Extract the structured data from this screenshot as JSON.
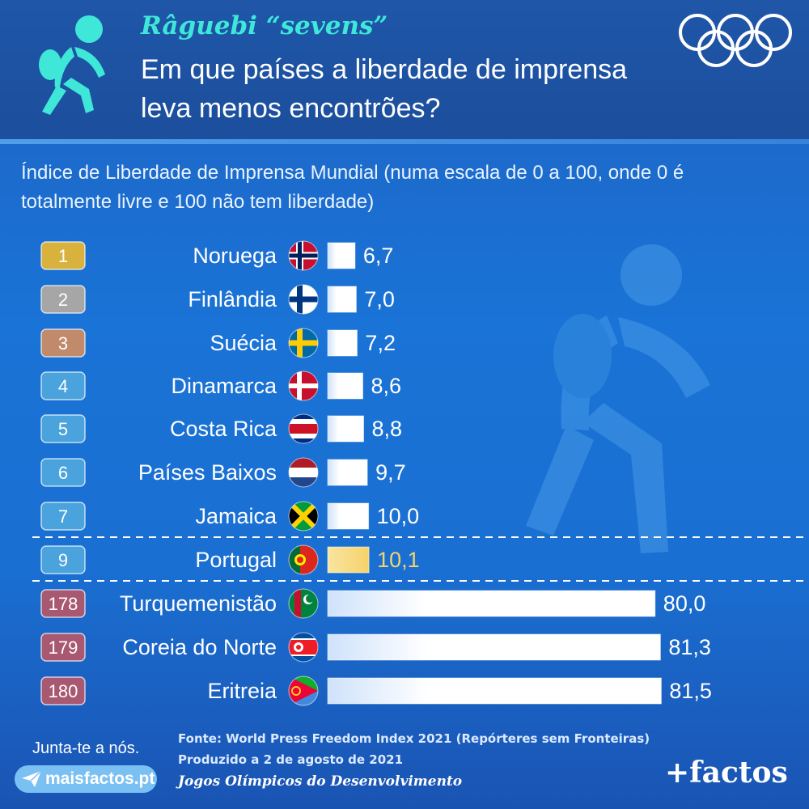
{
  "header": {
    "sport": "Râguebi “sevens”",
    "headline": "Em que países a liberdade de imprensa leva menos encontrões?",
    "icon": "rugby-player-icon",
    "logo": "olympic-rings-logo"
  },
  "subtitle": "Índice de Liberdade de Imprensa Mundial (numa escala de 0 a 100, onde 0 é totalmente livre e 100 não tem liberdade)",
  "chart_data": {
    "type": "bar",
    "orientation": "horizontal",
    "title": "",
    "xlabel": "",
    "ylabel": "",
    "xlim": [
      0,
      100
    ],
    "grid": false,
    "categories": [
      "Noruega",
      "Finlândia",
      "Suécia",
      "Dinamarca",
      "Costa Rica",
      "Países Baixos",
      "Jamaica",
      "Portugal",
      "Turquemenistão",
      "Coreia do Norte",
      "Eritreia"
    ],
    "ranks": [
      "1",
      "2",
      "3",
      "4",
      "5",
      "6",
      "7",
      "9",
      "178",
      "179",
      "180"
    ],
    "values": [
      6.7,
      7.0,
      7.2,
      8.6,
      8.8,
      9.7,
      10.0,
      10.1,
      80.0,
      81.3,
      81.5
    ],
    "value_labels": [
      "6,7",
      "7,0",
      "7,2",
      "8,6",
      "8,8",
      "9,7",
      "10,0",
      "10,1",
      "80,0",
      "81,3",
      "81,5"
    ],
    "highlight": "Portugal",
    "flags": [
      "norway-flag-icon",
      "finland-flag-icon",
      "sweden-flag-icon",
      "denmark-flag-icon",
      "costa-rica-flag-icon",
      "netherlands-flag-icon",
      "jamaica-flag-icon",
      "portugal-flag-icon",
      "turkmenistan-flag-icon",
      "north-korea-flag-icon",
      "eritrea-flag-icon"
    ]
  },
  "colors": {
    "gold": "#d9b23e",
    "silver": "#a6a6a6",
    "bronze": "#c08a6b",
    "rank_blue": "#4aa3dd",
    "rank_red": "#a85870",
    "highlight": "#f5d36b",
    "accent": "#3ee7d7"
  },
  "footer": {
    "join": "Junta-te a nós.",
    "site": "maisfactos.pt",
    "source": "Fonte: World Press Freedom Index 2021 (Repórteres sem Fronteiras)",
    "produced": "Produzido a 2 de agosto de 2021",
    "project": "Jogos Olímpicos do Desenvolvimento",
    "brand": "+factos",
    "send_icon": "paper-plane-icon"
  }
}
